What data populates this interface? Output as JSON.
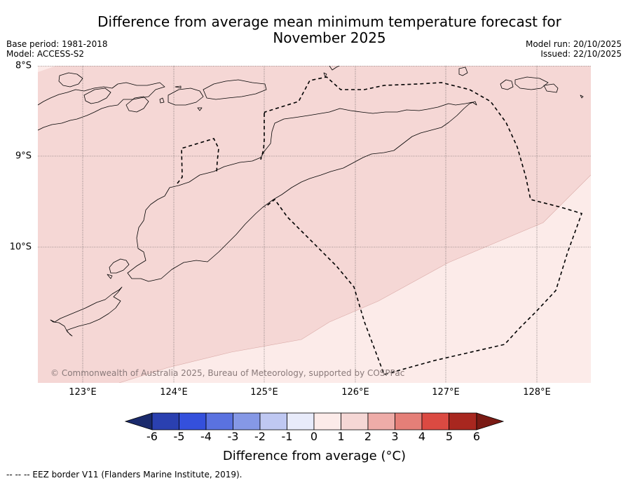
{
  "title_line1": "Difference from average mean minimum temperature forecast for",
  "title_line2": "November 2025",
  "base_period": "Base period: 1981-2018",
  "model": "Model: ACCESS-S2",
  "model_run": "Model run: 20/10/2025",
  "issued": "Issued: 22/10/2025",
  "copyright": "© Commonwealth of Australia 2025, Bureau of Meteorology, supported by COSPPac",
  "lat_labels": [
    "8°S",
    "9°S",
    "10°S"
  ],
  "lon_labels": [
    "123°E",
    "124°E",
    "125°E",
    "126°E",
    "127°E",
    "128°E"
  ],
  "colorbar": {
    "ticks": [
      "-6",
      "-5",
      "-4",
      "-3",
      "-2",
      "-1",
      "0",
      "1",
      "2",
      "3",
      "4",
      "5",
      "6"
    ],
    "label": "Difference from average (°C)",
    "colors": {
      "under": "#1a2a6c",
      "m6_m5": "#2a40b0",
      "m5_m4": "#3450dc",
      "m4_m3": "#5a72e0",
      "m3_m2": "#8598e6",
      "m2_m1": "#bfc8f2",
      "m1_0": "#e8ebfa",
      "0_1": "#fcebe9",
      "1_2": "#f5d7d5",
      "2_3": "#eeaca8",
      "3_4": "#e57f78",
      "4_5": "#db4a42",
      "5_6": "#a8271f",
      "over": "#7a1a14"
    }
  },
  "map_fill": {
    "band_1_2": "#f5d7d5",
    "band_0_1": "#fcebe9"
  },
  "footnote": "-- -- -- EEZ border V11 (Flanders Marine Institute, 2019)."
}
